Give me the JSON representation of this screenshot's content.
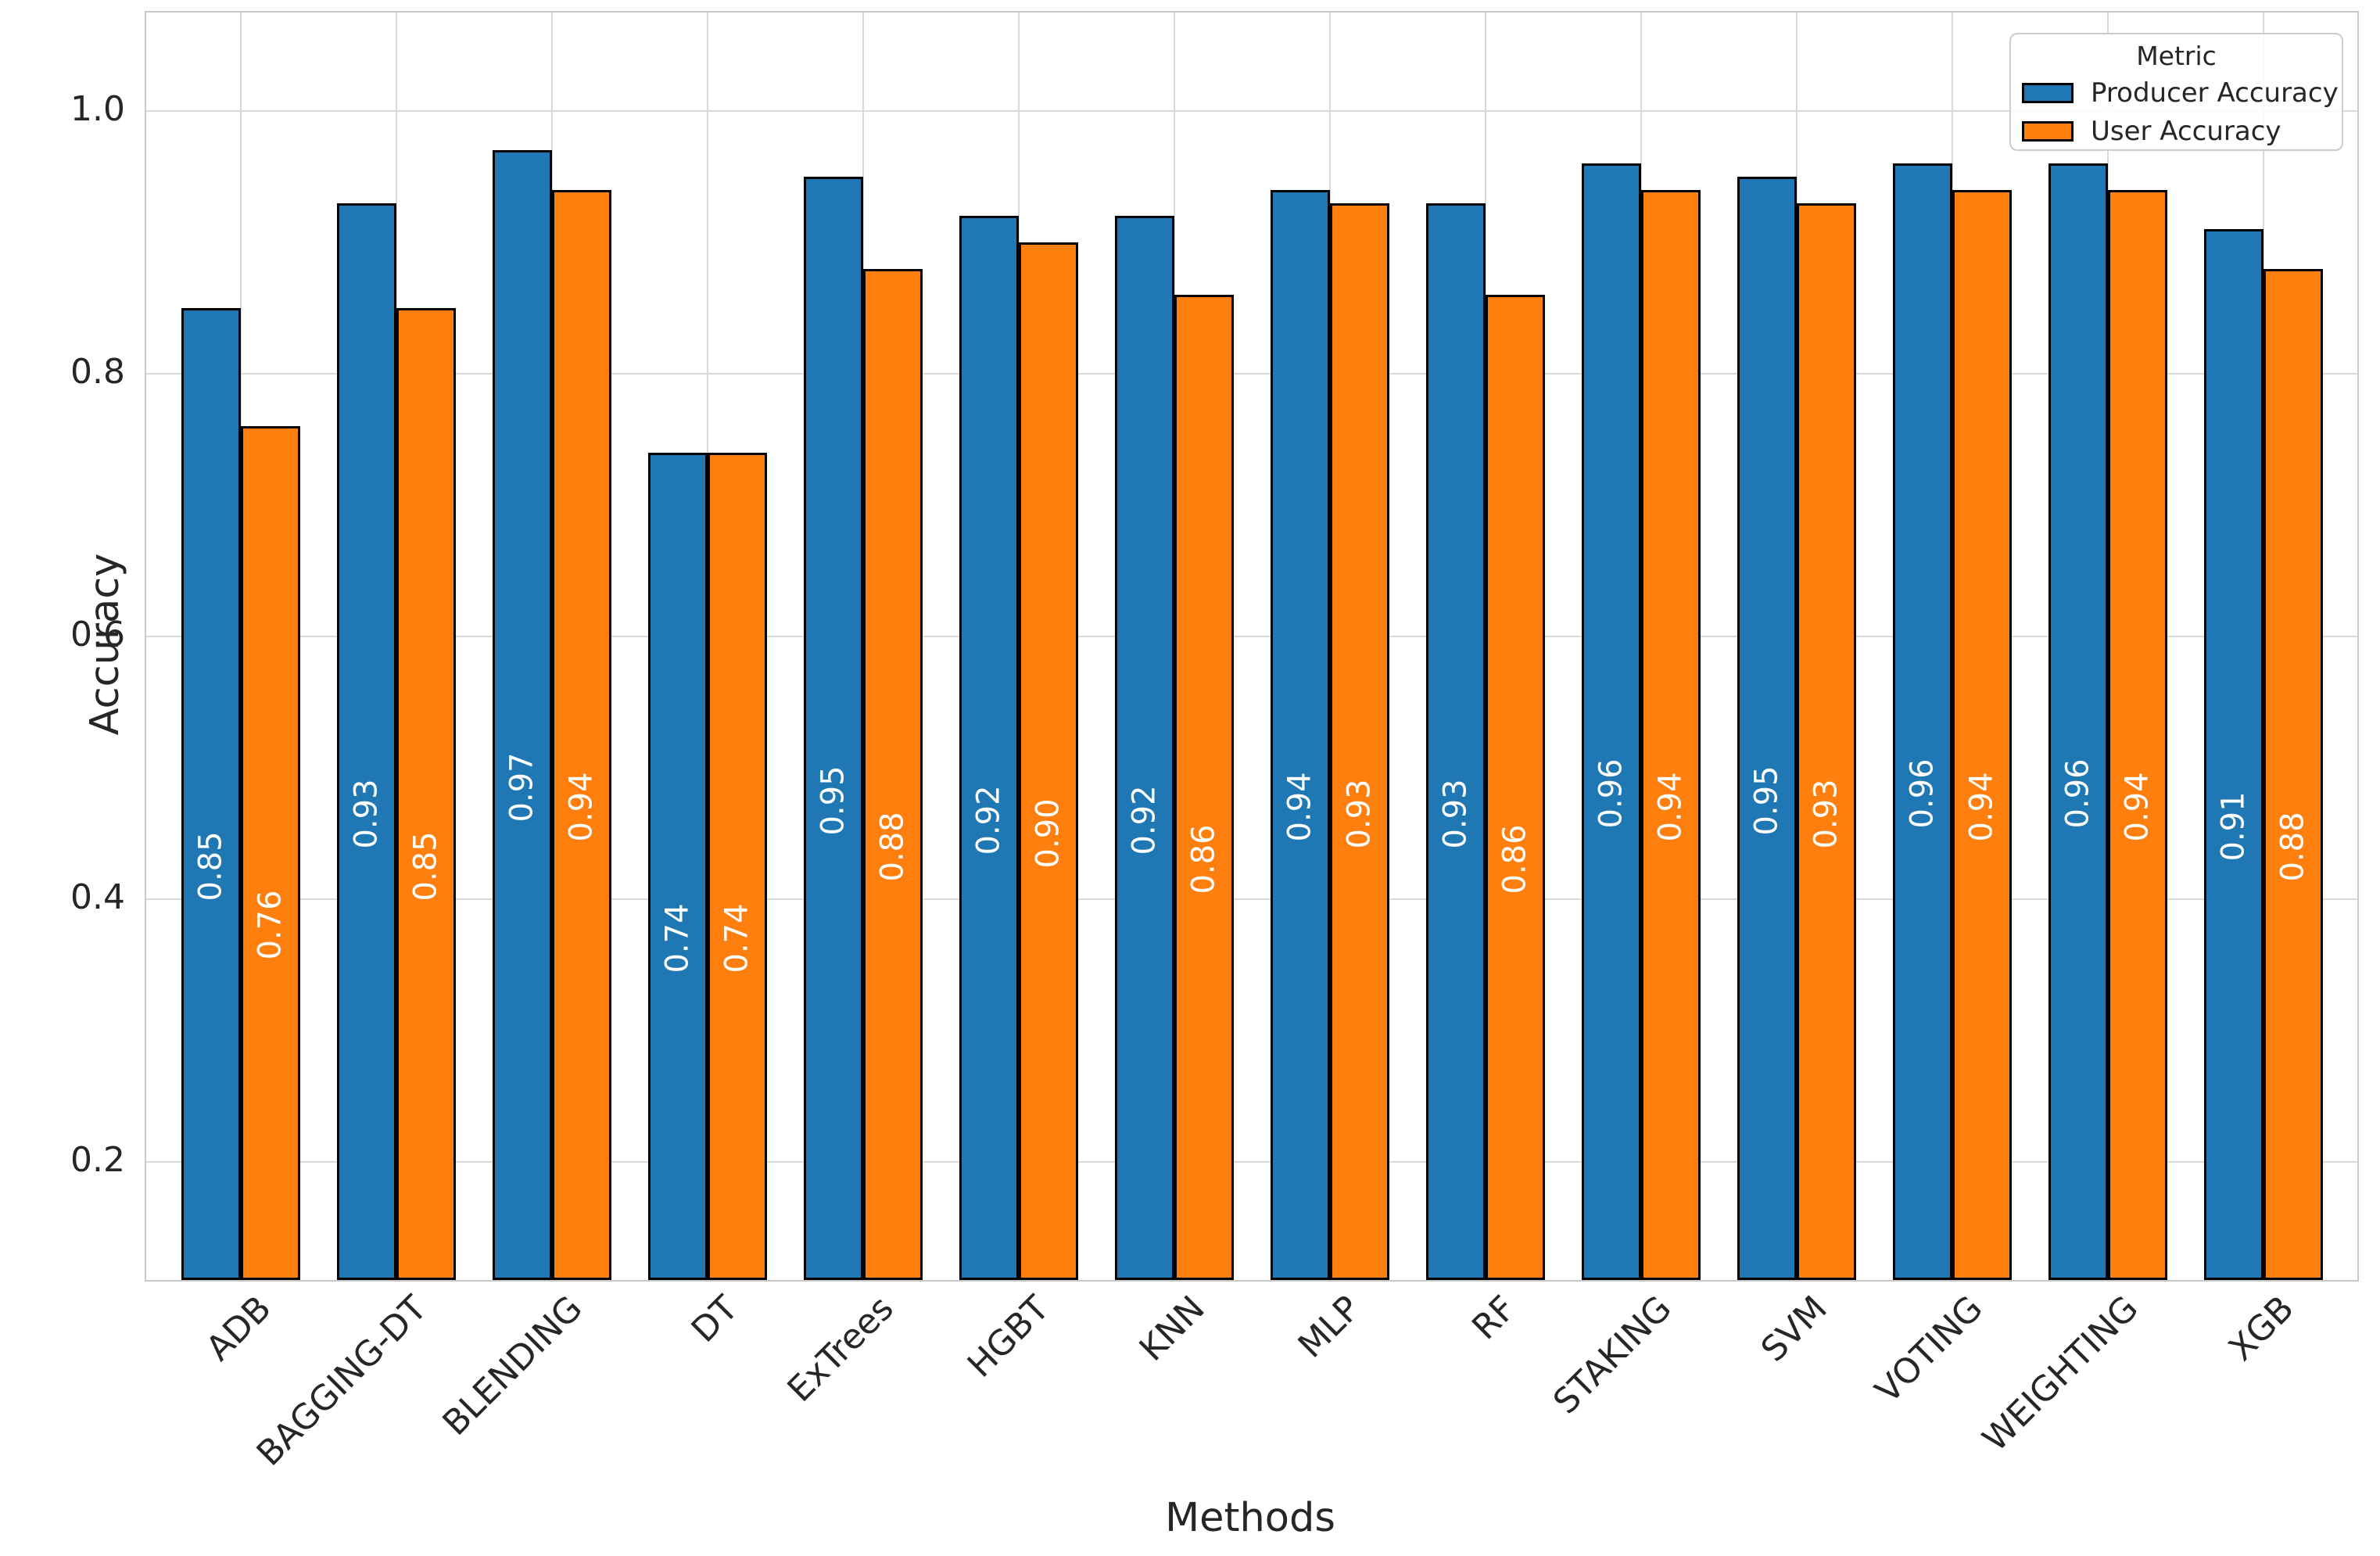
{
  "chart_data": {
    "type": "bar",
    "title": "",
    "xlabel": "Methods",
    "ylabel": "Accuracy",
    "categories": [
      "ADB",
      "BAGGING-DT",
      "BLENDING",
      "DT",
      "ExTrees",
      "HGBT",
      "KNN",
      "MLP",
      "RF",
      "STAKING",
      "SVM",
      "VOTING",
      "WEIGHTING",
      "XGB"
    ],
    "series": [
      {
        "name": "Producer Accuracy",
        "color": "#1f77b4",
        "values": [
          0.85,
          0.93,
          0.97,
          0.74,
          0.95,
          0.92,
          0.92,
          0.94,
          0.93,
          0.96,
          0.95,
          0.96,
          0.96,
          0.91
        ]
      },
      {
        "name": "User Accuracy",
        "color": "#ff7f0e",
        "values": [
          0.76,
          0.85,
          0.94,
          0.74,
          0.88,
          0.9,
          0.86,
          0.93,
          0.86,
          0.94,
          0.93,
          0.94,
          0.94,
          0.88
        ]
      }
    ],
    "bar_value_labels": {
      "visible": true,
      "format": "0.00",
      "color": "#ffffff",
      "rotation_deg": 90,
      "position": "center"
    },
    "yticks": [
      0.2,
      0.4,
      0.6,
      0.8,
      1.0
    ],
    "ylim": [
      0.11,
      1.075
    ],
    "grid": {
      "horizontal": true,
      "vertical": true,
      "color": "#d9d9d9"
    },
    "edge_color": "#000000",
    "legend": {
      "title": "Metric",
      "position": "upper-right"
    }
  }
}
